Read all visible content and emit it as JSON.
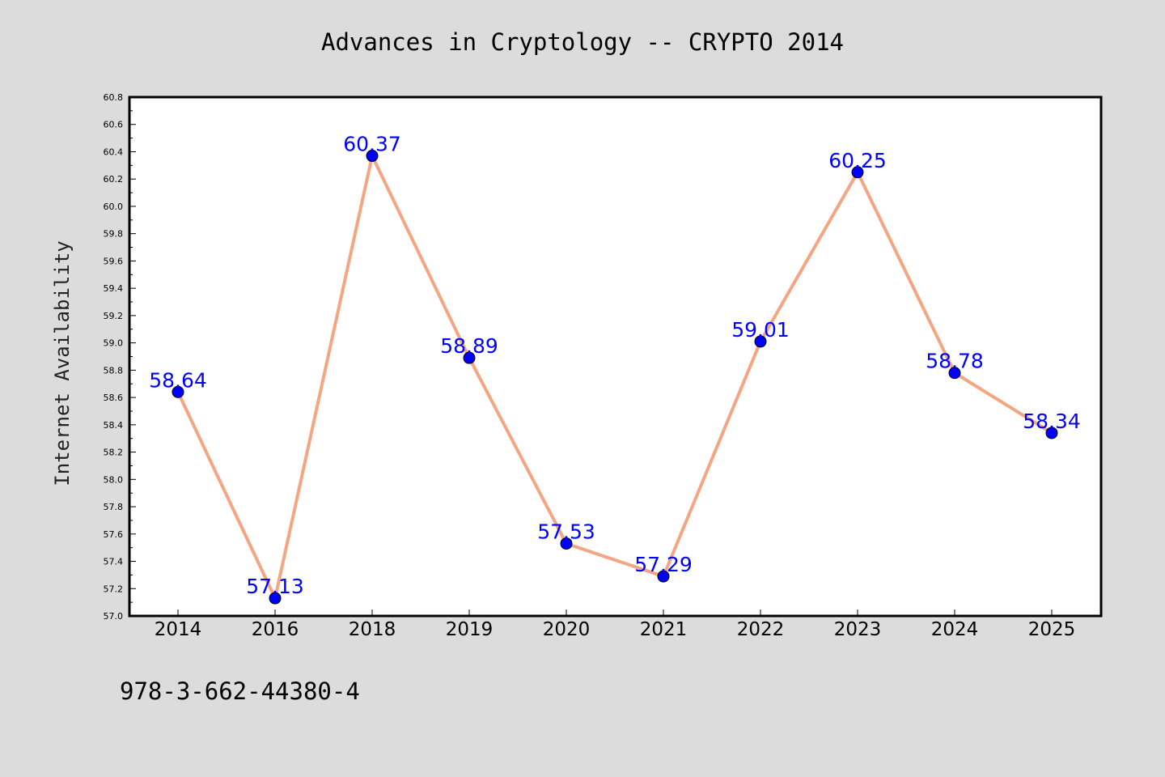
{
  "chart_data": {
    "type": "line",
    "title": "Advances in Cryptology -- CRYPTO 2014",
    "ylabel": "Internet Availability",
    "xlabel": "",
    "categories": [
      "2014",
      "2016",
      "2018",
      "2019",
      "2020",
      "2021",
      "2022",
      "2023",
      "2024",
      "2025"
    ],
    "series": [
      {
        "values": [
          58.64,
          57.13,
          60.37,
          58.89,
          57.53,
          57.29,
          59.01,
          60.25,
          58.78,
          58.34
        ],
        "data_labels": [
          "58.64",
          "57.13",
          "60.37",
          "58.89",
          "57.53",
          "57.29",
          "59.01",
          "60.25",
          "58.78",
          "58.34"
        ],
        "line_color": "#f4a582",
        "marker_color": "#0000ff",
        "label_color": "#0000ff"
      }
    ],
    "ylim": [
      57.0,
      60.8
    ],
    "yticks": [
      "57.0",
      "57.2",
      "57.4",
      "57.6",
      "57.8",
      "58.0",
      "58.2",
      "58.4",
      "58.6",
      "58.8",
      "59.0",
      "59.2",
      "59.4",
      "59.6",
      "59.8",
      "60.0",
      "60.2",
      "60.4",
      "60.6",
      "60.8"
    ],
    "grid": false,
    "legend": "none",
    "footnote": "978-3-662-44380-4"
  }
}
